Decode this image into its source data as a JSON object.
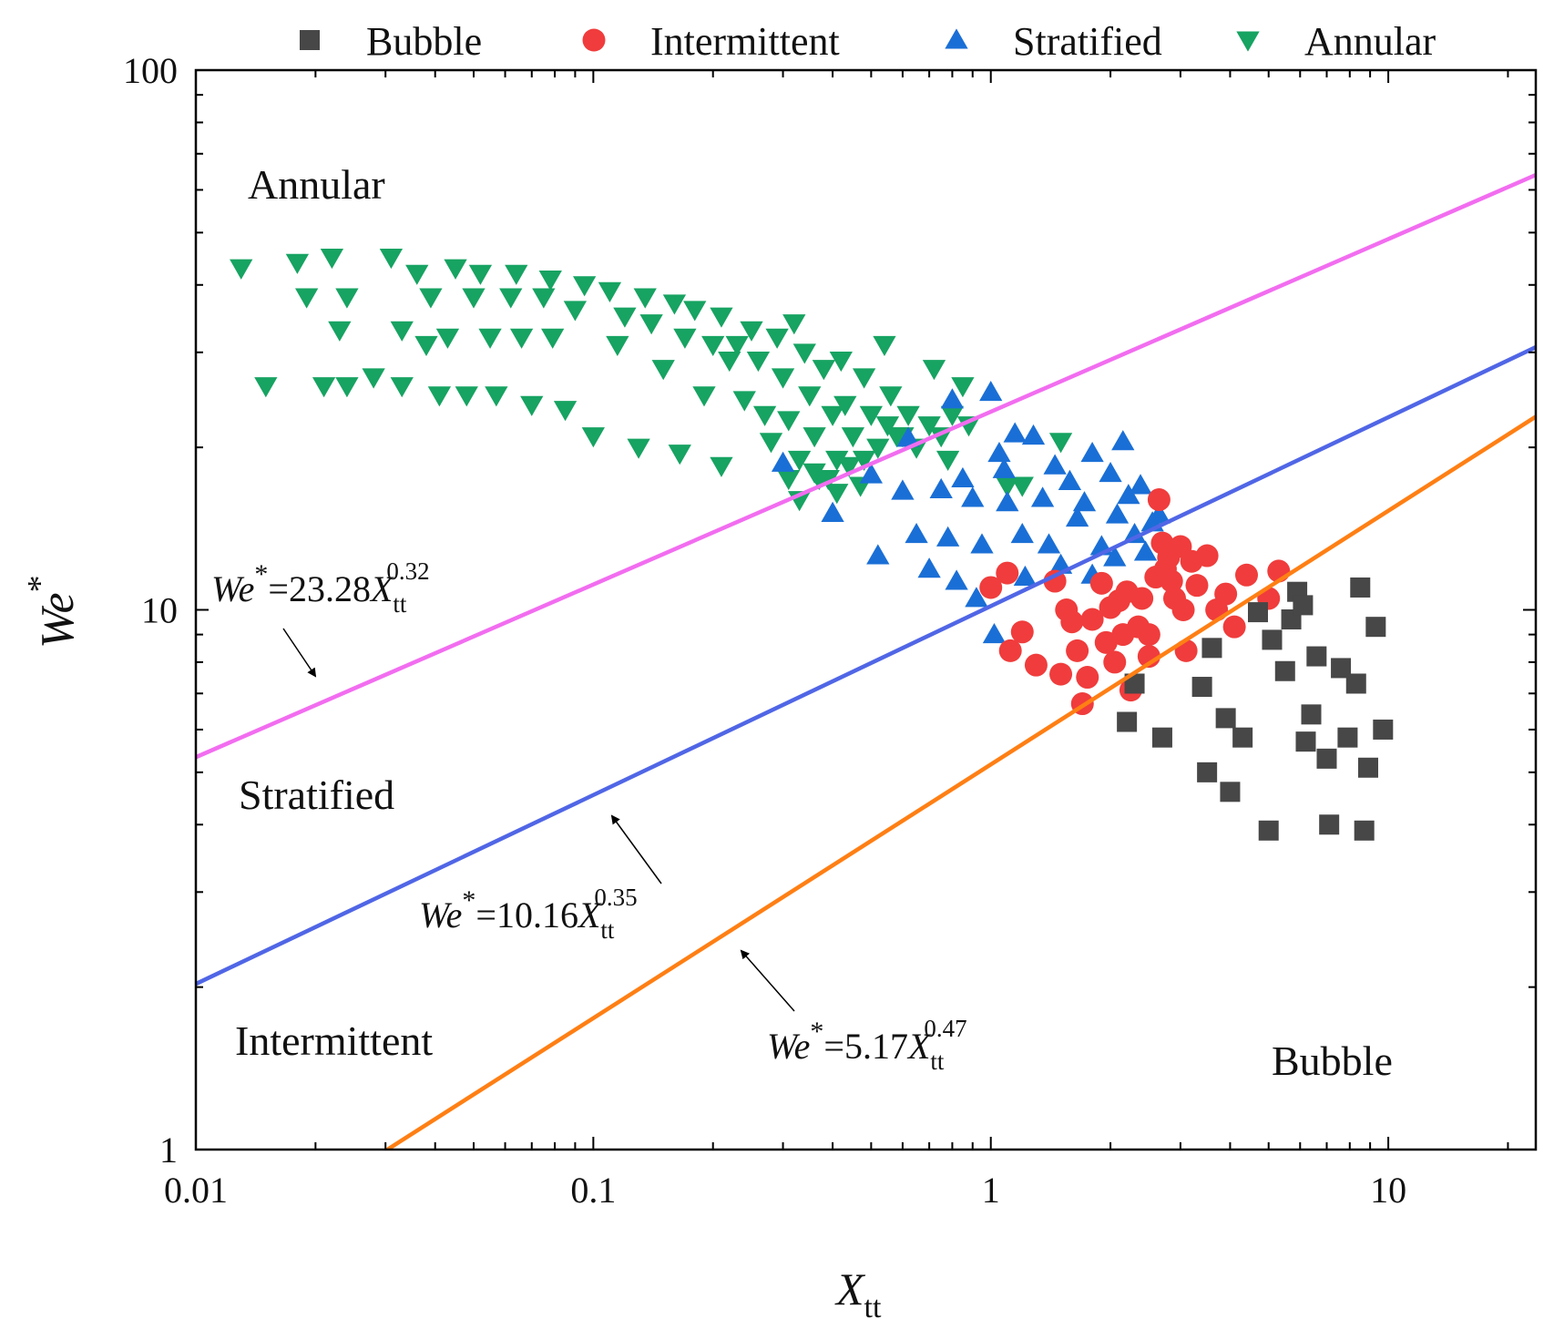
{
  "chart_data": {
    "type": "scatter",
    "title": "",
    "xlabel": "X",
    "xlabel_sub": "tt",
    "ylabel": "We",
    "ylabel_sup": "*",
    "xscale": "log",
    "yscale": "log",
    "xlim": [
      0.01,
      23.5
    ],
    "ylim": [
      1,
      100
    ],
    "xticks": [
      0.01,
      0.1,
      1,
      10
    ],
    "xtick_labels": [
      "0.01",
      "0.1",
      "1",
      "10"
    ],
    "yticks": [
      1,
      10,
      100
    ],
    "ytick_labels": [
      "1",
      "10",
      "100"
    ],
    "grid": false,
    "legend_position": "top",
    "series": [
      {
        "name": "Bubble",
        "marker": "square",
        "color": "#474747",
        "points": [
          [
            2.3,
            7.3
          ],
          [
            2.2,
            6.2
          ],
          [
            2.7,
            5.8
          ],
          [
            3.4,
            7.2
          ],
          [
            3.6,
            8.5
          ],
          [
            3.5,
            5.0
          ],
          [
            3.9,
            6.3
          ],
          [
            4.0,
            4.6
          ],
          [
            4.3,
            5.8
          ],
          [
            4.7,
            9.9
          ],
          [
            5.0,
            3.9
          ],
          [
            5.1,
            8.8
          ],
          [
            5.5,
            7.7
          ],
          [
            5.7,
            9.6
          ],
          [
            5.9,
            10.8
          ],
          [
            6.1,
            10.2
          ],
          [
            6.2,
            5.7
          ],
          [
            6.4,
            6.4
          ],
          [
            6.6,
            8.2
          ],
          [
            7.0,
            5.3
          ],
          [
            7.1,
            4.0
          ],
          [
            7.6,
            7.8
          ],
          [
            7.9,
            5.8
          ],
          [
            8.3,
            7.3
          ],
          [
            8.5,
            11.0
          ],
          [
            8.7,
            3.9
          ],
          [
            8.9,
            5.1
          ],
          [
            9.3,
            9.3
          ],
          [
            9.7,
            6.0
          ]
        ]
      },
      {
        "name": "Intermittent",
        "marker": "circle",
        "color": "#f03c3c",
        "points": [
          [
            1.0,
            11.0
          ],
          [
            1.1,
            11.7
          ],
          [
            1.12,
            8.4
          ],
          [
            1.2,
            9.1
          ],
          [
            1.3,
            7.9
          ],
          [
            1.45,
            11.3
          ],
          [
            1.5,
            7.6
          ],
          [
            1.55,
            10.0
          ],
          [
            1.6,
            9.5
          ],
          [
            1.65,
            8.4
          ],
          [
            1.7,
            6.7
          ],
          [
            1.75,
            7.5
          ],
          [
            1.8,
            9.6
          ],
          [
            1.9,
            11.2
          ],
          [
            1.95,
            8.7
          ],
          [
            2.0,
            10.1
          ],
          [
            2.05,
            8.0
          ],
          [
            2.1,
            10.4
          ],
          [
            2.15,
            9.0
          ],
          [
            2.2,
            10.8
          ],
          [
            2.25,
            7.1
          ],
          [
            2.35,
            9.3
          ],
          [
            2.4,
            10.5
          ],
          [
            2.5,
            9.0
          ],
          [
            2.6,
            11.5
          ],
          [
            2.65,
            16.0
          ],
          [
            2.7,
            13.3
          ],
          [
            2.75,
            11.9
          ],
          [
            2.8,
            12.5
          ],
          [
            2.85,
            11.3
          ],
          [
            2.9,
            10.5
          ],
          [
            3.0,
            13.1
          ],
          [
            3.05,
            10.0
          ],
          [
            3.1,
            8.4
          ],
          [
            3.2,
            12.3
          ],
          [
            3.3,
            11.1
          ],
          [
            3.5,
            12.6
          ],
          [
            3.7,
            10.0
          ],
          [
            3.9,
            10.7
          ],
          [
            4.1,
            9.3
          ],
          [
            4.4,
            11.6
          ],
          [
            5.0,
            10.5
          ],
          [
            5.3,
            11.8
          ],
          [
            2.5,
            8.2
          ]
        ]
      },
      {
        "name": "Stratified",
        "marker": "triangle-up",
        "color": "#1a6fd6",
        "points": [
          [
            0.3,
            18.7
          ],
          [
            0.4,
            15.1
          ],
          [
            0.5,
            17.8
          ],
          [
            0.52,
            12.6
          ],
          [
            0.6,
            16.6
          ],
          [
            0.62,
            20.8
          ],
          [
            0.65,
            13.8
          ],
          [
            0.7,
            11.9
          ],
          [
            0.75,
            16.7
          ],
          [
            0.78,
            13.6
          ],
          [
            0.8,
            24.5
          ],
          [
            0.82,
            11.3
          ],
          [
            0.85,
            17.5
          ],
          [
            0.9,
            16.1
          ],
          [
            0.92,
            10.5
          ],
          [
            0.95,
            13.2
          ],
          [
            1.0,
            25.3
          ],
          [
            1.02,
            9.0
          ],
          [
            1.05,
            19.5
          ],
          [
            1.08,
            18.2
          ],
          [
            1.1,
            15.8
          ],
          [
            1.15,
            21.2
          ],
          [
            1.2,
            13.8
          ],
          [
            1.22,
            11.5
          ],
          [
            1.28,
            21.0
          ],
          [
            1.35,
            16.1
          ],
          [
            1.4,
            13.2
          ],
          [
            1.45,
            18.5
          ],
          [
            1.5,
            12.1
          ],
          [
            1.58,
            17.3
          ],
          [
            1.65,
            14.8
          ],
          [
            1.72,
            15.8
          ],
          [
            1.8,
            19.5
          ],
          [
            1.9,
            13.1
          ],
          [
            2.0,
            17.9
          ],
          [
            2.08,
            15.0
          ],
          [
            2.15,
            20.5
          ],
          [
            2.22,
            16.3
          ],
          [
            2.3,
            13.8
          ],
          [
            2.38,
            17.0
          ],
          [
            2.45,
            12.8
          ],
          [
            2.55,
            14.5
          ],
          [
            2.65,
            15.0
          ],
          [
            1.8,
            11.6
          ],
          [
            2.05,
            12.5
          ]
        ]
      },
      {
        "name": "Annular",
        "marker": "triangle-down",
        "color": "#17a362",
        "points": [
          [
            0.013,
            43
          ],
          [
            0.015,
            26
          ],
          [
            0.018,
            44
          ],
          [
            0.019,
            38
          ],
          [
            0.021,
            26
          ],
          [
            0.022,
            45
          ],
          [
            0.023,
            33
          ],
          [
            0.024,
            26
          ],
          [
            0.024,
            38
          ],
          [
            0.028,
            27
          ],
          [
            0.031,
            45
          ],
          [
            0.033,
            33
          ],
          [
            0.033,
            26
          ],
          [
            0.036,
            42
          ],
          [
            0.038,
            31
          ],
          [
            0.039,
            38
          ],
          [
            0.041,
            25
          ],
          [
            0.043,
            32
          ],
          [
            0.045,
            43
          ],
          [
            0.048,
            25
          ],
          [
            0.05,
            38
          ],
          [
            0.052,
            42
          ],
          [
            0.055,
            32
          ],
          [
            0.057,
            25
          ],
          [
            0.062,
            38
          ],
          [
            0.064,
            42
          ],
          [
            0.066,
            32
          ],
          [
            0.07,
            24
          ],
          [
            0.075,
            38
          ],
          [
            0.078,
            41
          ],
          [
            0.079,
            32
          ],
          [
            0.085,
            23.5
          ],
          [
            0.09,
            36
          ],
          [
            0.095,
            40
          ],
          [
            0.1,
            21
          ],
          [
            0.11,
            39
          ],
          [
            0.115,
            31
          ],
          [
            0.12,
            35
          ],
          [
            0.13,
            20
          ],
          [
            0.135,
            38
          ],
          [
            0.14,
            34
          ],
          [
            0.15,
            28
          ],
          [
            0.16,
            37
          ],
          [
            0.165,
            19.5
          ],
          [
            0.17,
            32
          ],
          [
            0.18,
            36
          ],
          [
            0.19,
            25
          ],
          [
            0.2,
            31
          ],
          [
            0.21,
            35
          ],
          [
            0.21,
            18.5
          ],
          [
            0.22,
            29
          ],
          [
            0.23,
            31
          ],
          [
            0.24,
            24.5
          ],
          [
            0.25,
            33
          ],
          [
            0.26,
            29
          ],
          [
            0.27,
            23
          ],
          [
            0.28,
            20.5
          ],
          [
            0.29,
            32
          ],
          [
            0.3,
            27
          ],
          [
            0.31,
            22.5
          ],
          [
            0.32,
            34
          ],
          [
            0.33,
            19
          ],
          [
            0.34,
            30
          ],
          [
            0.35,
            25
          ],
          [
            0.36,
            21
          ],
          [
            0.37,
            17.5
          ],
          [
            0.38,
            28
          ],
          [
            0.4,
            23
          ],
          [
            0.41,
            19
          ],
          [
            0.42,
            29
          ],
          [
            0.43,
            24
          ],
          [
            0.45,
            21
          ],
          [
            0.47,
            17
          ],
          [
            0.48,
            27
          ],
          [
            0.5,
            23
          ],
          [
            0.52,
            20
          ],
          [
            0.54,
            31
          ],
          [
            0.56,
            25
          ],
          [
            0.58,
            21
          ],
          [
            0.62,
            23
          ],
          [
            0.65,
            20
          ],
          [
            0.7,
            22
          ],
          [
            0.72,
            28
          ],
          [
            0.75,
            21
          ],
          [
            0.78,
            19
          ],
          [
            0.8,
            23
          ],
          [
            0.85,
            26
          ],
          [
            0.88,
            22
          ],
          [
            1.1,
            17
          ],
          [
            1.2,
            17
          ],
          [
            1.5,
            20.5
          ],
          [
            0.31,
            17.5
          ],
          [
            0.33,
            16
          ],
          [
            0.36,
            18
          ],
          [
            0.39,
            17.5
          ],
          [
            0.41,
            16.5
          ],
          [
            0.44,
            18.5
          ],
          [
            0.48,
            19
          ],
          [
            0.55,
            22
          ],
          [
            0.6,
            21
          ]
        ]
      }
    ],
    "lines": [
      {
        "name": "pink",
        "color": "#f26df0",
        "coef": 23.28,
        "exp": 0.32
      },
      {
        "name": "blue",
        "color": "#5066e6",
        "coef": 10.16,
        "exp": 0.35
      },
      {
        "name": "orange",
        "color": "#ff7f14",
        "coef": 5.17,
        "exp": 0.47
      }
    ],
    "equations": [
      {
        "lhs": "We",
        "lhs_sup": "*",
        "rhs": "=23.28",
        "var": "X",
        "var_sub": "tt",
        "var_sup": "0.32"
      },
      {
        "lhs": "We",
        "lhs_sup": "*",
        "rhs": "=10.16",
        "var": "X",
        "var_sub": "tt",
        "var_sup": "0.35"
      },
      {
        "lhs": "We",
        "lhs_sup": "*",
        "rhs": "=5.17",
        "var": "X",
        "var_sub": "tt",
        "var_sup": "0.47"
      }
    ],
    "region_labels": [
      "Annular",
      "Stratified",
      "Intermittent",
      "Bubble"
    ]
  }
}
